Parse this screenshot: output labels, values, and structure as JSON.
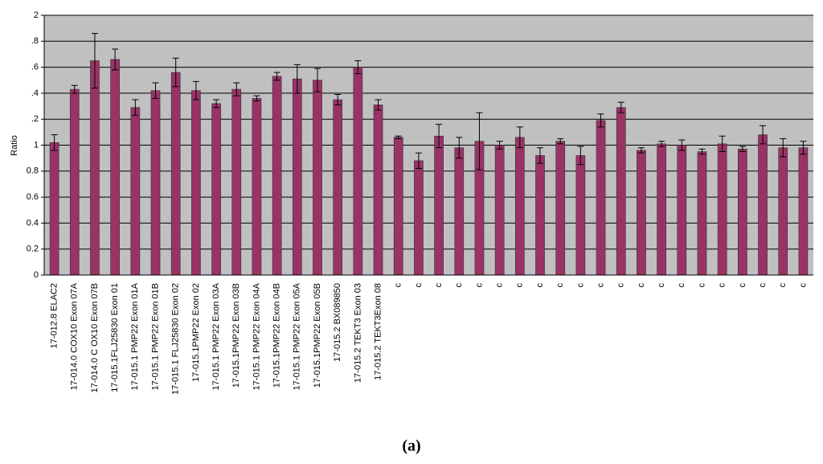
{
  "chart_data": {
    "type": "bar",
    "y_label": "Ratio",
    "caption": "(a)",
    "categories": [
      "17-012.8 ELAC2",
      "17-014.0 COX10 Exon 07A",
      "17-014.0 C OX10 Exon 07B",
      "17-015.1FLJ25830 Exon 01",
      "17-015.1 PMP22 Exon 01A",
      "17-015.1 PMP22 Exon 01B",
      "17-015.1 FLJ25830 Exon 02",
      "17-015.1PMP22 Exon 02",
      "17-015.1 PMP22 Exon 03A",
      "17-015.1PMP22 Exon 03B",
      "17-015.1 PMP22 Exon 04A",
      "17-015.1PMP22 Exon 04B",
      "17-015.1 PMP22 Exon 05A",
      "17-015.1PMP22 Exon 05B",
      "17-015.2 BX089850",
      "17-015.2 TEKT3 Exon 03",
      "17-015.2 TEKT3Exon 08",
      "c",
      "c",
      "c",
      "c",
      "c",
      "c",
      "c",
      "c",
      "c",
      "c",
      "c",
      "c",
      "c",
      "c",
      "c",
      "c",
      "c",
      "c",
      "c",
      "c",
      "c"
    ],
    "values": [
      1.02,
      1.43,
      1.65,
      1.66,
      1.29,
      1.42,
      1.56,
      1.42,
      1.32,
      1.43,
      1.36,
      1.53,
      1.51,
      1.5,
      1.35,
      1.6,
      1.31,
      1.06,
      0.88,
      1.07,
      0.98,
      1.03,
      1.0,
      1.06,
      0.92,
      1.03,
      0.92,
      1.19,
      1.29,
      0.96,
      1.01,
      1.0,
      0.95,
      1.01,
      0.97,
      1.08,
      0.98,
      0.98
    ],
    "errors": [
      0.06,
      0.03,
      0.21,
      0.08,
      0.06,
      0.06,
      0.11,
      0.07,
      0.03,
      0.05,
      0.02,
      0.03,
      0.11,
      0.09,
      0.04,
      0.05,
      0.04,
      0.01,
      0.06,
      0.09,
      0.08,
      0.22,
      0.03,
      0.08,
      0.06,
      0.02,
      0.07,
      0.05,
      0.04,
      0.02,
      0.02,
      0.04,
      0.02,
      0.06,
      0.02,
      0.07,
      0.07,
      0.05
    ],
    "color": "#993366",
    "ylim": [
      0,
      2
    ],
    "yticks": [
      0,
      0.2,
      0.4,
      0.6,
      0.8,
      1,
      {
        "value": 1.2,
        "label": ".2"
      },
      {
        "value": 1.4,
        "label": ".4"
      },
      {
        "value": 1.6,
        "label": ".6"
      },
      {
        "value": 1.8,
        "label": ".8"
      },
      2
    ],
    "grid": true
  }
}
